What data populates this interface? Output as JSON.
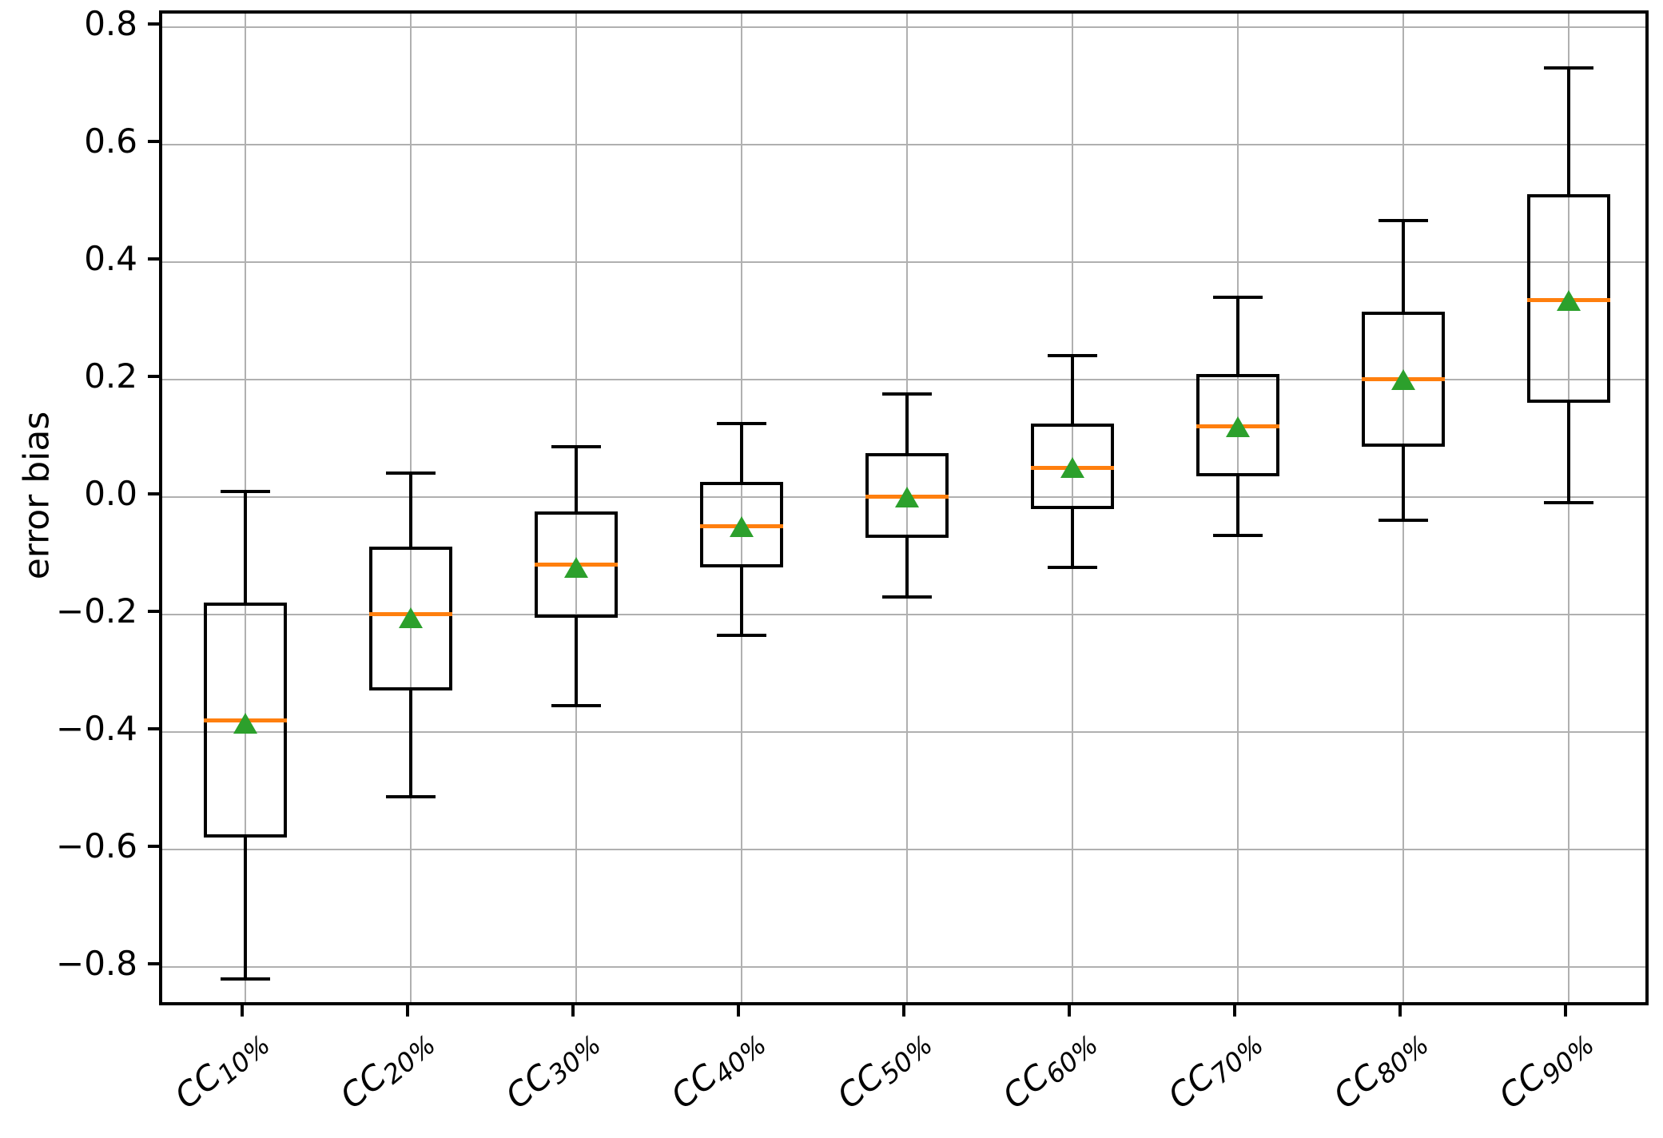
{
  "figure": {
    "background": "#ffffff"
  },
  "chart_data": {
    "type": "box",
    "title": "",
    "xlabel": "",
    "ylabel": "error bias",
    "ylim": [
      -0.871,
      0.823
    ],
    "grid": "both",
    "legend": "none",
    "ytick_labels": [
      "0.8",
      "0.6",
      "0.4",
      "0.2",
      "0.0",
      "−0.2",
      "−0.4",
      "−0.6",
      "−0.8"
    ],
    "ytick_values": [
      0.8,
      0.6,
      0.4,
      0.2,
      0.0,
      -0.2,
      -0.4,
      -0.6,
      -0.8
    ],
    "colors": {
      "box": "#000000",
      "whisker": "#000000",
      "median": "#ff7f0e",
      "mean_marker": "#2ca02c",
      "grid": "#b0b0b0"
    },
    "categories": [
      {
        "base": "CC",
        "sub": "10%"
      },
      {
        "base": "CC",
        "sub": "20%"
      },
      {
        "base": "CC",
        "sub": "30%"
      },
      {
        "base": "CC",
        "sub": "40%"
      },
      {
        "base": "CC",
        "sub": "50%"
      },
      {
        "base": "CC",
        "sub": "60%"
      },
      {
        "base": "CC",
        "sub": "70%"
      },
      {
        "base": "CC",
        "sub": "80%"
      },
      {
        "base": "CC",
        "sub": "90%"
      }
    ],
    "series": [
      {
        "label": "CC10%",
        "whisker_low": -0.82,
        "q1": -0.58,
        "median": -0.38,
        "mean": -0.385,
        "q3": -0.18,
        "whisker_high": 0.01
      },
      {
        "label": "CC20%",
        "whisker_low": -0.51,
        "q1": -0.33,
        "median": -0.2,
        "mean": -0.205,
        "q3": -0.085,
        "whisker_high": 0.04
      },
      {
        "label": "CC30%",
        "whisker_low": -0.355,
        "q1": -0.205,
        "median": -0.115,
        "mean": -0.12,
        "q3": -0.025,
        "whisker_high": 0.085
      },
      {
        "label": "CC40%",
        "whisker_low": -0.235,
        "q1": -0.12,
        "median": -0.05,
        "mean": -0.05,
        "q3": 0.025,
        "whisker_high": 0.125
      },
      {
        "label": "CC50%",
        "whisker_low": -0.17,
        "q1": -0.07,
        "median": 0.0,
        "mean": 0.0,
        "q3": 0.075,
        "whisker_high": 0.175
      },
      {
        "label": "CC60%",
        "whisker_low": -0.12,
        "q1": -0.02,
        "median": 0.05,
        "mean": 0.05,
        "q3": 0.125,
        "whisker_high": 0.24
      },
      {
        "label": "CC70%",
        "whisker_low": -0.065,
        "q1": 0.035,
        "median": 0.12,
        "mean": 0.12,
        "q3": 0.21,
        "whisker_high": 0.34
      },
      {
        "label": "CC80%",
        "whisker_low": -0.04,
        "q1": 0.085,
        "median": 0.2,
        "mean": 0.2,
        "q3": 0.315,
        "whisker_high": 0.47
      },
      {
        "label": "CC90%",
        "whisker_low": -0.01,
        "q1": 0.16,
        "median": 0.335,
        "mean": 0.335,
        "q3": 0.515,
        "whisker_high": 0.73
      }
    ]
  }
}
